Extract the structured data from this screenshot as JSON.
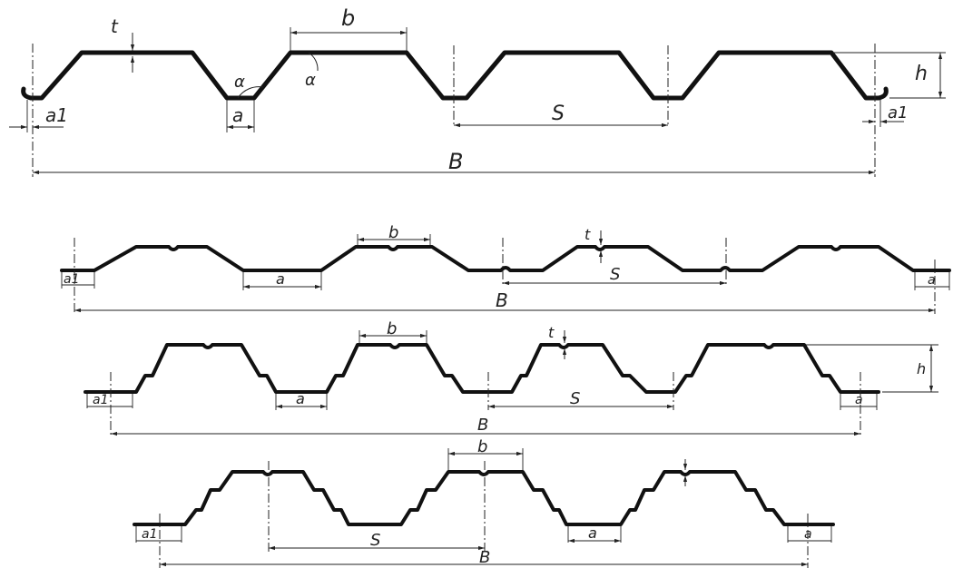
{
  "labels": {
    "t": "t",
    "b": "b",
    "h": "h",
    "S": "S",
    "B": "B",
    "a": "a",
    "a1": "a1",
    "alpha": "α"
  }
}
